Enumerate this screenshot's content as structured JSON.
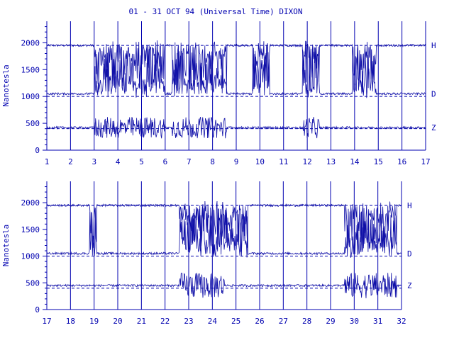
{
  "title": "01 - 31 OCT 94 (Universal Time) DIXON",
  "colors": {
    "ink": "#0000b0",
    "trace": "#1010a8",
    "background": "#ffffff"
  },
  "chart_data": [
    {
      "type": "line",
      "title": "01 - 31 OCT 94 (Universal Time) DIXON",
      "ylabel": "Nanotesla",
      "xlabel": "",
      "x_range": [
        1,
        17
      ],
      "x_ticks": [
        "1",
        "2",
        "3",
        "4",
        "5",
        "6",
        "7",
        "8",
        "9",
        "10",
        "11",
        "12",
        "13",
        "14",
        "15",
        "16",
        "17"
      ],
      "ylim": [
        0,
        2400
      ],
      "y_ticks": [
        "0",
        "500",
        "1000",
        "1500",
        "2000"
      ],
      "grid": "vertical day lines",
      "baselines": [
        1950,
        1000,
        400
      ],
      "series": [
        {
          "name": "H",
          "base": 1950,
          "disturbed_days": [
            [
              3,
              6
            ],
            [
              6.3,
              8.6
            ],
            [
              9.7,
              10.4
            ],
            [
              11.8,
              12.5
            ],
            [
              13.9,
              14.9
            ]
          ],
          "depth": 900
        },
        {
          "name": "D",
          "base": 1050,
          "disturbed_days": [
            [
              3,
              6
            ],
            [
              6.3,
              8.6
            ],
            [
              9.7,
              10.4
            ],
            [
              11.8,
              12.5
            ],
            [
              13.9,
              14.9
            ]
          ],
          "depth": 900
        },
        {
          "name": "Z",
          "base": 420,
          "disturbed_days": [
            [
              3,
              6
            ],
            [
              6.3,
              8.6
            ],
            [
              11.8,
              12.5
            ]
          ],
          "depth": 250
        }
      ]
    },
    {
      "type": "line",
      "title": "",
      "ylabel": "Nanotesla",
      "xlabel": "",
      "x_range": [
        17,
        32
      ],
      "x_ticks": [
        "17",
        "18",
        "19",
        "20",
        "21",
        "22",
        "23",
        "24",
        "25",
        "26",
        "27",
        "28",
        "29",
        "30",
        "31",
        "32"
      ],
      "ylim": [
        0,
        2400
      ],
      "y_ticks": [
        "0",
        "500",
        "1000",
        "1500",
        "2000"
      ],
      "grid": "vertical day lines",
      "baselines": [
        1950,
        1000,
        400
      ],
      "series": [
        {
          "name": "H",
          "base": 1950,
          "disturbed_days": [
            [
              18.8,
              19.1
            ],
            [
              22.6,
              25.5
            ],
            [
              29.6,
              31.8
            ]
          ],
          "depth": 900
        },
        {
          "name": "D",
          "base": 1050,
          "disturbed_days": [
            [
              18.8,
              19.1
            ],
            [
              22.6,
              25.5
            ],
            [
              29.6,
              31.8
            ]
          ],
          "depth": 900
        },
        {
          "name": "Z",
          "base": 450,
          "disturbed_days": [
            [
              22.6,
              24.5
            ],
            [
              29.6,
              31.8
            ]
          ],
          "depth": 300
        }
      ]
    }
  ]
}
